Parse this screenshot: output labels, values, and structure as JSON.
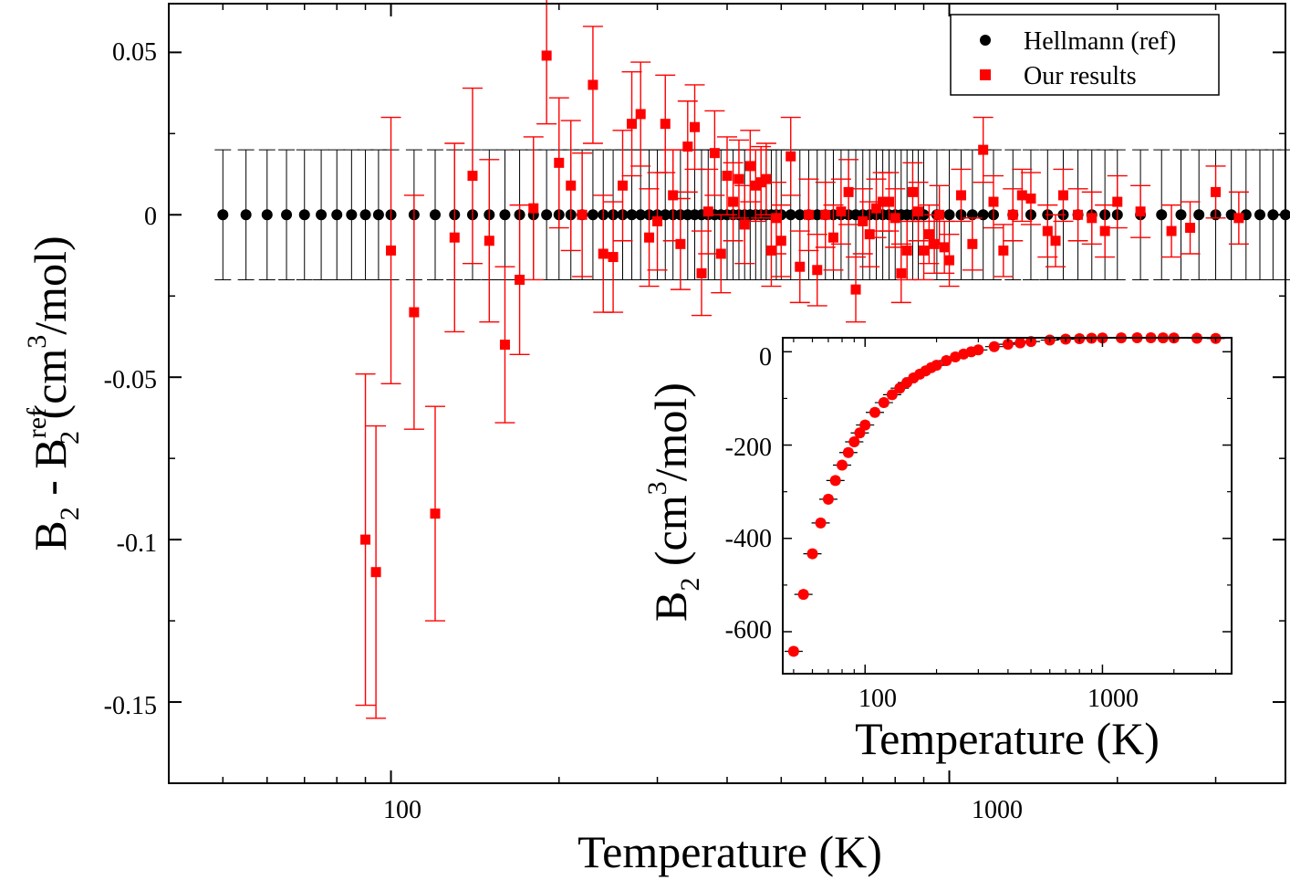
{
  "chart_data": [
    {
      "type": "scatter",
      "xlabel": "Temperature (K)",
      "ylabel": {
        "base": "B",
        "sub1": "2",
        "minus": " - B",
        "sup": "ref",
        "sub2": "2",
        "unit_open": " (cm",
        "unit_sup": "3",
        "unit_close": "/mol)"
      },
      "xscale": "log",
      "xlim": [
        40,
        4000
      ],
      "ylim": [
        -0.175,
        0.065
      ],
      "xticks_major": [
        100,
        1000
      ],
      "xtick_labels": [
        "100",
        "1000"
      ],
      "yticks_major": [
        0.05,
        0,
        -0.05,
        -0.1,
        -0.15
      ],
      "ytick_labels": [
        "0.05",
        "0",
        "-0.05",
        "-0.1",
        "-0.15"
      ],
      "grid": false,
      "legend_position": "top-right",
      "series": [
        {
          "name": "Hellmann (ref)",
          "marker": "circle",
          "color": "#000000",
          "y": 0,
          "error": 0.02,
          "x": [
            50,
            55,
            60,
            65,
            70,
            75,
            80,
            85,
            90,
            95,
            100,
            110,
            120,
            130,
            140,
            150,
            160,
            170,
            180,
            190,
            200,
            210,
            220,
            230,
            240,
            250,
            260,
            270,
            280,
            290,
            300,
            310,
            320,
            330,
            340,
            350,
            360,
            370,
            380,
            390,
            400,
            410,
            420,
            430,
            440,
            450,
            460,
            470,
            480,
            490,
            500,
            520,
            540,
            560,
            580,
            600,
            620,
            640,
            660,
            680,
            700,
            720,
            740,
            760,
            780,
            800,
            820,
            840,
            860,
            880,
            900,
            950,
            1000,
            1050,
            1100,
            1150,
            1200,
            1300,
            1400,
            1500,
            1600,
            1700,
            1800,
            1900,
            2000,
            2200,
            2400,
            2600,
            2800,
            3000,
            3200,
            3400,
            3600,
            3800,
            4000
          ]
        },
        {
          "name": "Our results",
          "marker": "square",
          "color": "#ff0000",
          "points": [
            [
              90,
              -0.1,
              0.051
            ],
            [
              94,
              -0.11,
              0.045
            ],
            [
              100,
              -0.011,
              0.041
            ],
            [
              110,
              -0.03,
              0.036
            ],
            [
              120,
              -0.092,
              0.033
            ],
            [
              130,
              -0.007,
              0.029
            ],
            [
              140,
              0.012,
              0.027
            ],
            [
              150,
              -0.008,
              0.025
            ],
            [
              160,
              -0.04,
              0.024
            ],
            [
              170,
              -0.02,
              0.023
            ],
            [
              180,
              0.002,
              0.022
            ],
            [
              190,
              0.049,
              0.021
            ],
            [
              200,
              0.016,
              0.02
            ],
            [
              210,
              0.009,
              0.02
            ],
            [
              220,
              0.0,
              0.019
            ],
            [
              230,
              0.04,
              0.018
            ],
            [
              240,
              -0.012,
              0.018
            ],
            [
              250,
              -0.013,
              0.017
            ],
            [
              260,
              0.009,
              0.017
            ],
            [
              270,
              0.028,
              0.016
            ],
            [
              280,
              0.031,
              0.016
            ],
            [
              290,
              -0.007,
              0.015
            ],
            [
              300,
              -0.002,
              0.015
            ],
            [
              310,
              0.028,
              0.015
            ],
            [
              320,
              0.006,
              0.014
            ],
            [
              330,
              -0.009,
              0.014
            ],
            [
              340,
              0.021,
              0.014
            ],
            [
              350,
              0.027,
              0.013
            ],
            [
              360,
              -0.018,
              0.013
            ],
            [
              370,
              0.001,
              0.013
            ],
            [
              380,
              0.019,
              0.013
            ],
            [
              390,
              -0.012,
              0.012
            ],
            [
              400,
              0.012,
              0.012
            ],
            [
              410,
              0.004,
              0.012
            ],
            [
              420,
              0.011,
              0.012
            ],
            [
              430,
              -0.003,
              0.012
            ],
            [
              440,
              0.015,
              0.011
            ],
            [
              450,
              0.009,
              0.011
            ],
            [
              460,
              0.01,
              0.011
            ],
            [
              470,
              0.011,
              0.011
            ],
            [
              480,
              -0.011,
              0.011
            ],
            [
              490,
              -0.001,
              0.011
            ],
            [
              500,
              -0.008,
              0.011
            ],
            [
              520,
              0.018,
              0.012
            ],
            [
              540,
              -0.016,
              0.011
            ],
            [
              560,
              0.0,
              0.011
            ],
            [
              580,
              -0.017,
              0.011
            ],
            [
              600,
              0.0,
              0.01
            ],
            [
              620,
              -0.007,
              0.01
            ],
            [
              640,
              0.001,
              0.01
            ],
            [
              660,
              0.007,
              0.01
            ],
            [
              680,
              -0.023,
              0.01
            ],
            [
              700,
              -0.002,
              0.01
            ],
            [
              720,
              -0.006,
              0.01
            ],
            [
              740,
              0.002,
              0.009
            ],
            [
              760,
              0.004,
              0.009
            ],
            [
              780,
              0.004,
              0.009
            ],
            [
              800,
              -0.001,
              0.009
            ],
            [
              820,
              -0.018,
              0.009
            ],
            [
              840,
              -0.011,
              0.009
            ],
            [
              860,
              0.007,
              0.009
            ],
            [
              880,
              0.001,
              0.009
            ],
            [
              900,
              -0.011,
              0.009
            ],
            [
              920,
              -0.006,
              0.009
            ],
            [
              940,
              -0.009,
              0.009
            ],
            [
              960,
              0.0,
              0.009
            ],
            [
              980,
              -0.01,
              0.008
            ],
            [
              1000,
              -0.014,
              0.008
            ],
            [
              1050,
              0.006,
              0.008
            ],
            [
              1100,
              -0.009,
              0.008
            ],
            [
              1150,
              0.02,
              0.01
            ],
            [
              1200,
              0.004,
              0.008
            ],
            [
              1250,
              -0.011,
              0.008
            ],
            [
              1300,
              0.0,
              0.008
            ],
            [
              1350,
              0.006,
              0.008
            ],
            [
              1400,
              0.005,
              0.008
            ],
            [
              1500,
              -0.005,
              0.008
            ],
            [
              1550,
              -0.008,
              0.008
            ],
            [
              1600,
              0.006,
              0.008
            ],
            [
              1700,
              0.0,
              0.008
            ],
            [
              1800,
              -0.001,
              0.008
            ],
            [
              1900,
              -0.005,
              0.008
            ],
            [
              2000,
              0.004,
              0.008
            ],
            [
              2200,
              0.001,
              0.008
            ],
            [
              2500,
              -0.005,
              0.008
            ],
            [
              2700,
              -0.004,
              0.008
            ],
            [
              3000,
              0.007,
              0.008
            ],
            [
              3300,
              -0.001,
              0.008
            ]
          ]
        }
      ]
    },
    {
      "type": "scatter",
      "inset": true,
      "xlabel": "Temperature (K)",
      "ylabel": {
        "base": "B",
        "sub1": "2",
        "unit_open": " (cm",
        "unit_sup": "3",
        "unit_close": "/mol)"
      },
      "xscale": "log",
      "xlim": [
        45,
        3500
      ],
      "ylim": [
        -690,
        30
      ],
      "xticks_major": [
        100,
        1000
      ],
      "xtick_labels": [
        "100",
        "1000"
      ],
      "yticks_major": [
        0,
        -200,
        -400,
        -600
      ],
      "ytick_labels": [
        "0",
        "-200",
        "-400",
        "-600"
      ],
      "grid": false,
      "series": [
        {
          "name": "Hellmann (ref)",
          "marker": "circle",
          "color": "#ff0000",
          "points": [
            [
              50,
              -642
            ],
            [
              55,
              -520
            ],
            [
              60,
              -433
            ],
            [
              65,
              -367
            ],
            [
              70,
              -316
            ],
            [
              75,
              -276
            ],
            [
              80,
              -243
            ],
            [
              85,
              -216
            ],
            [
              90,
              -193
            ],
            [
              95,
              -174
            ],
            [
              100,
              -157
            ],
            [
              110,
              -130
            ],
            [
              120,
              -109
            ],
            [
              130,
              -92
            ],
            [
              140,
              -78
            ],
            [
              150,
              -66
            ],
            [
              160,
              -56
            ],
            [
              170,
              -48
            ],
            [
              180,
              -41
            ],
            [
              190,
              -34
            ],
            [
              200,
              -29
            ],
            [
              220,
              -19
            ],
            [
              240,
              -11
            ],
            [
              260,
              -5
            ],
            [
              280,
              0
            ],
            [
              300,
              4
            ],
            [
              350,
              11
            ],
            [
              400,
              16
            ],
            [
              450,
              19
            ],
            [
              500,
              22
            ],
            [
              600,
              25
            ],
            [
              700,
              27
            ],
            [
              800,
              28
            ],
            [
              900,
              29
            ],
            [
              1000,
              29.5
            ],
            [
              1200,
              29.8
            ],
            [
              1400,
              30
            ],
            [
              1600,
              30
            ],
            [
              1800,
              29.8
            ],
            [
              2000,
              29.6
            ],
            [
              2500,
              29
            ],
            [
              3000,
              28.5
            ]
          ]
        },
        {
          "name": "Our results",
          "marker": "square",
          "color": "#ff0000",
          "points": [
            [
              50,
              -642
            ],
            [
              55,
              -520
            ],
            [
              60,
              -433
            ],
            [
              65,
              -367
            ],
            [
              70,
              -316
            ],
            [
              75,
              -276
            ],
            [
              80,
              -243
            ],
            [
              85,
              -216
            ],
            [
              90,
              -193
            ],
            [
              95,
              -174
            ],
            [
              100,
              -157
            ],
            [
              110,
              -130
            ],
            [
              120,
              -109
            ],
            [
              130,
              -92
            ],
            [
              140,
              -78
            ],
            [
              150,
              -66
            ],
            [
              160,
              -56
            ],
            [
              170,
              -48
            ],
            [
              180,
              -41
            ],
            [
              190,
              -34
            ],
            [
              200,
              -29
            ],
            [
              220,
              -19
            ],
            [
              240,
              -11
            ],
            [
              260,
              -5
            ],
            [
              280,
              0
            ],
            [
              300,
              4
            ],
            [
              350,
              11
            ],
            [
              400,
              16
            ],
            [
              450,
              19
            ],
            [
              500,
              22
            ],
            [
              600,
              25
            ],
            [
              700,
              27
            ],
            [
              800,
              28
            ],
            [
              900,
              29
            ],
            [
              1000,
              29.5
            ],
            [
              1200,
              29.8
            ],
            [
              1400,
              30
            ],
            [
              1600,
              30
            ],
            [
              1800,
              29.8
            ],
            [
              2000,
              29.6
            ],
            [
              2500,
              29
            ],
            [
              3000,
              28.5
            ]
          ]
        }
      ]
    }
  ]
}
